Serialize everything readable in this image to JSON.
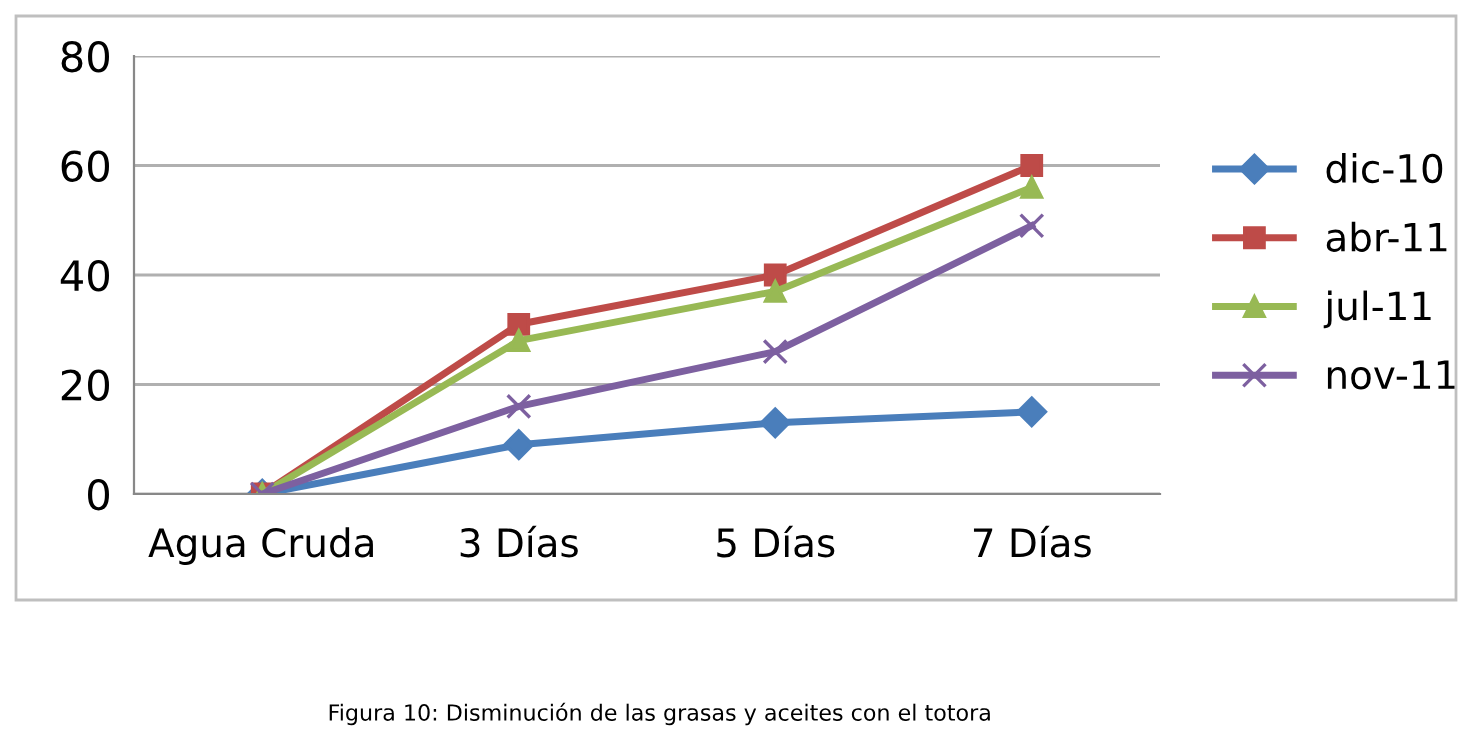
{
  "chart_data": {
    "type": "line",
    "categories": [
      "Agua Cruda",
      "3 Días",
      "5 Días",
      "7 Días"
    ],
    "series": [
      {
        "name": "dic-10",
        "color": "#4a7ebb",
        "marker": "diamond",
        "values": [
          0,
          9,
          13,
          15
        ]
      },
      {
        "name": "abr-11",
        "color": "#be4b48",
        "marker": "square",
        "values": [
          0,
          31,
          40,
          60
        ]
      },
      {
        "name": "jul-11",
        "color": "#98b954",
        "marker": "triangle",
        "values": [
          0,
          28,
          37,
          56
        ]
      },
      {
        "name": "nov-11",
        "color": "#7d60a0",
        "marker": "cross",
        "values": [
          0,
          16,
          26,
          49
        ]
      }
    ],
    "ylim": [
      0,
      80
    ],
    "yticks": [
      0,
      20,
      40,
      60,
      80
    ],
    "grid": "y",
    "legend": "right",
    "line_style": "solid",
    "annotations": [
      "Figura 10: Disminución de las grasas y aceites con el totora"
    ]
  }
}
